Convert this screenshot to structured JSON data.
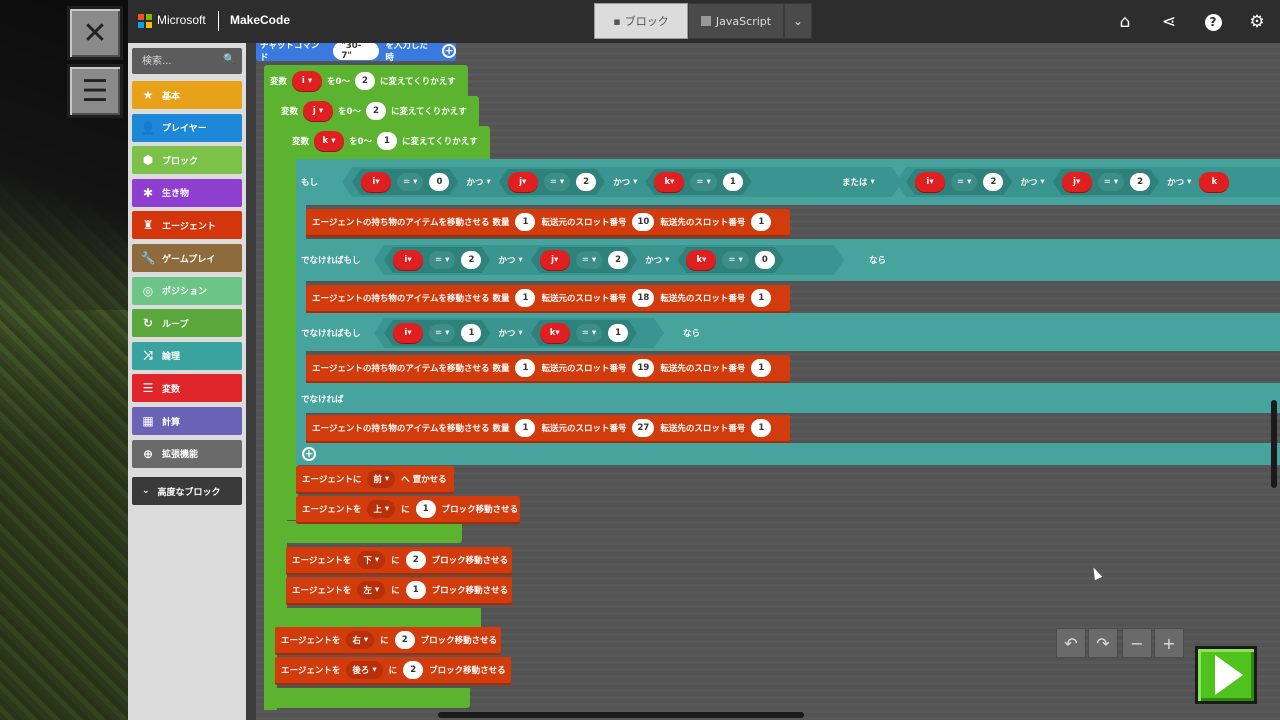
{
  "header": {
    "brand": "Microsoft",
    "product": "MakeCode",
    "tabs": [
      {
        "label": "ブロック",
        "icon": "puzzle-icon",
        "active": true
      },
      {
        "label": "JavaScript",
        "icon": "js-icon",
        "active": false
      }
    ]
  },
  "search": {
    "placeholder": "検索..."
  },
  "categories": [
    {
      "label": "基本",
      "icon": "star-icon",
      "color": "#e8a21a"
    },
    {
      "label": "プレイヤー",
      "icon": "person-icon",
      "color": "#1e88d8"
    },
    {
      "label": "ブロック",
      "icon": "cube-icon",
      "color": "#7cc24a"
    },
    {
      "label": "生き物",
      "icon": "paw-icon",
      "color": "#8e3fd0"
    },
    {
      "label": "エージェント",
      "icon": "agent-icon",
      "color": "#d3360c"
    },
    {
      "label": "ゲームプレイ",
      "icon": "wrench-icon",
      "color": "#8d6b3d"
    },
    {
      "label": "ポジション",
      "icon": "target-icon",
      "color": "#6cc486"
    },
    {
      "label": "ループ",
      "icon": "loop-icon",
      "color": "#5aa83c"
    },
    {
      "label": "論理",
      "icon": "shuffle-icon",
      "color": "#3aa3a0"
    },
    {
      "label": "変数",
      "icon": "list-icon",
      "color": "#e0262a"
    },
    {
      "label": "計算",
      "icon": "calculator-icon",
      "color": "#6a62b5"
    },
    {
      "label": "拡張機能",
      "icon": "plus-icon",
      "color": "#6a6a6a"
    }
  ],
  "advanced_label": "高度なブロック",
  "code": {
    "chat_command_label": "チャットコマンド",
    "chat_command_value": "\"30-7\"",
    "chat_command_suffix": "を入力した時",
    "loop_var_prefix": "変数",
    "loop_from": "を0～",
    "loop_suffix": "に変えてくりかえす",
    "loops": [
      {
        "var": "i",
        "max": "2"
      },
      {
        "var": "j",
        "max": "2"
      },
      {
        "var": "k",
        "max": "1"
      }
    ],
    "if_label": "もし",
    "elseif_label": "でなければもし",
    "else_label": "でなければ",
    "then_label": "なら",
    "and_label": "かつ",
    "or_label": "または",
    "eq_label": "=",
    "cond1": {
      "i": "0",
      "j": "2",
      "k": "1",
      "i2": "2",
      "j2": "2",
      "k2": "k"
    },
    "cond2": {
      "i": "2",
      "j": "2",
      "k": "0"
    },
    "cond3": {
      "i": "1",
      "k": "1"
    },
    "move_item_prefix": "エージェントの持ち物のアイテムを移動させる 数量",
    "move_item_from": "転送元のスロット番号",
    "move_item_to": "転送先のスロット番号",
    "move_items": [
      {
        "qty": "1",
        "from": "10",
        "to": "1"
      },
      {
        "qty": "1",
        "from": "18",
        "to": "1"
      },
      {
        "qty": "1",
        "from": "19",
        "to": "1"
      },
      {
        "qty": "1",
        "from": "27",
        "to": "1"
      }
    ],
    "place_prefix": "エージェントに",
    "place_dir": "前",
    "place_suffix": "へ 置かせる",
    "agent_move_prefix": "エージェントを",
    "agent_move_mid": "に",
    "agent_move_suffix": "ブロック移動させる",
    "agent_moves": [
      {
        "dir": "上",
        "n": "1"
      },
      {
        "dir": "下",
        "n": "2"
      },
      {
        "dir": "左",
        "n": "1"
      },
      {
        "dir": "右",
        "n": "2"
      },
      {
        "dir": "後ろ",
        "n": "2"
      }
    ]
  }
}
